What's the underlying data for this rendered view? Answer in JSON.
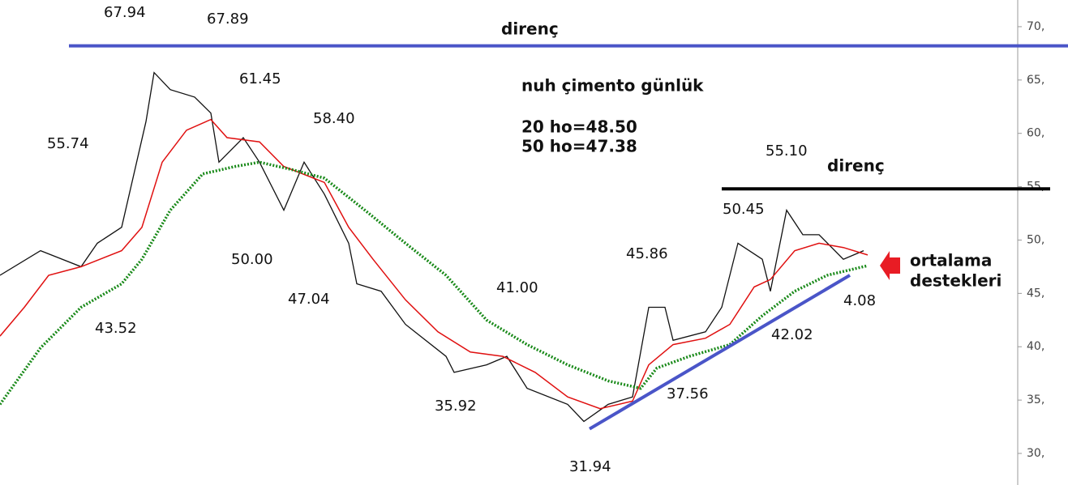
{
  "chart_data": {
    "type": "line",
    "title": "nuh çimento günlük",
    "subtitle": [
      "20 ho=48.50",
      "50 ho=47.38"
    ],
    "xlim": [
      0,
      263.4
    ],
    "ylim": [
      27.04,
      72.5
    ],
    "yticks": [
      {
        "value": 30,
        "label": "30,"
      },
      {
        "value": 35,
        "label": "35,"
      },
      {
        "value": 40,
        "label": "40,"
      },
      {
        "value": 45,
        "label": "45,"
      },
      {
        "value": 50,
        "label": "50,"
      },
      {
        "value": 55,
        "label": "55,"
      },
      {
        "value": 60,
        "label": "60,"
      },
      {
        "value": 65,
        "label": "65,"
      },
      {
        "value": 70,
        "label": "70,"
      }
    ],
    "series": [
      {
        "color": "#111111",
        "x": [
          0,
          10,
          20,
          24,
          30,
          36,
          38,
          42,
          48,
          52,
          54,
          60,
          64,
          70,
          75,
          80,
          86,
          88,
          94,
          100,
          110,
          112,
          120,
          125,
          130,
          140,
          144,
          150,
          156,
          160,
          164,
          166,
          174,
          178,
          182,
          188,
          190,
          194,
          198,
          202,
          208,
          213
        ],
        "values": [
          46.7,
          49.0,
          47.5,
          49.7,
          51.2,
          61.1,
          65.7,
          64.1,
          63.4,
          61.9,
          57.3,
          59.6,
          57.3,
          52.8,
          57.3,
          54.3,
          49.7,
          45.9,
          45.2,
          42.1,
          39.1,
          37.6,
          38.3,
          39.1,
          36.1,
          34.6,
          33.0,
          34.6,
          35.3,
          43.7,
          43.7,
          40.6,
          41.4,
          43.7,
          49.7,
          48.2,
          45.2,
          52.8,
          50.5,
          50.5,
          48.2,
          49.0
        ]
      },
      {
        "color": "#e01010",
        "x": [
          0,
          6,
          12,
          20,
          30,
          35,
          40,
          46,
          52,
          56,
          64,
          70,
          80,
          86,
          92,
          100,
          108,
          116,
          124,
          132,
          140,
          148,
          156,
          160,
          166,
          174,
          180,
          186,
          190,
          196,
          202,
          208,
          214
        ],
        "values": [
          41.0,
          43.7,
          46.7,
          47.5,
          49.0,
          51.2,
          57.3,
          60.3,
          61.3,
          59.6,
          59.2,
          56.9,
          55.4,
          51.2,
          48.2,
          44.4,
          41.4,
          39.5,
          39.1,
          37.6,
          35.3,
          34.2,
          34.9,
          38.3,
          40.2,
          40.8,
          42.1,
          45.6,
          46.3,
          49.0,
          49.7,
          49.3,
          48.6
        ]
      },
      {
        "color": "#1a8a1a",
        "x": [
          0,
          10,
          20,
          30,
          35,
          42,
          50,
          58,
          64,
          72,
          80,
          90,
          100,
          110,
          120,
          130,
          140,
          150,
          158,
          162,
          170,
          180,
          188,
          196,
          204,
          214
        ],
        "values": [
          34.6,
          39.9,
          43.7,
          45.9,
          48.2,
          52.8,
          56.2,
          56.9,
          57.3,
          56.6,
          55.8,
          52.8,
          49.7,
          46.7,
          42.5,
          40.2,
          38.3,
          36.8,
          36.1,
          38.0,
          39.1,
          40.2,
          42.9,
          45.2,
          46.7,
          47.6
        ]
      }
    ],
    "hlines": [
      {
        "value": 68.2,
        "x": [
          17,
          263.4
        ],
        "color": "#4a55c8"
      },
      {
        "value": 54.8,
        "x": [
          178,
          259
        ],
        "color": "#000000"
      }
    ],
    "trendline": {
      "x": [
        145.4,
        209.6
      ],
      "values": [
        32.3,
        46.7
      ],
      "color": "#4a55c8"
    },
    "annotations": [
      "67.94",
      "67.89",
      "61.45",
      "55.74",
      "58.40",
      "50.00",
      "43.52",
      "47.04",
      "41.00",
      "45.86",
      "35.92",
      "31.94",
      "37.56",
      "50.45",
      "55.10",
      "42.02",
      "4.08",
      "direnç",
      "direnç",
      "ortalama",
      "destekleri"
    ]
  }
}
